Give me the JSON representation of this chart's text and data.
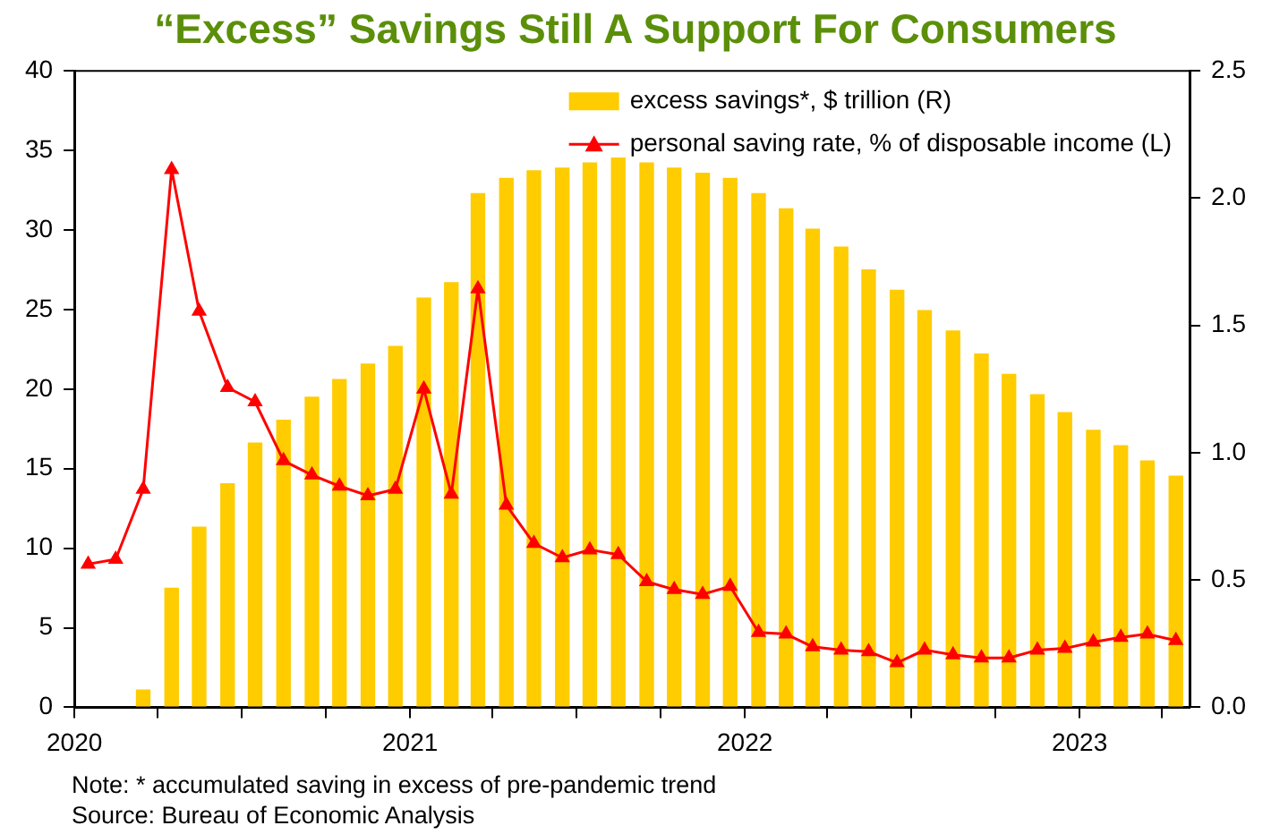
{
  "chart_data": {
    "type": "bar",
    "title": "“Excess” Savings Still A Support For Consumers",
    "x": [
      "2020-01-16",
      "2020-02-15",
      "2020-03-16",
      "2020-04-16",
      "2020-05-16",
      "2020-06-16",
      "2020-07-16",
      "2020-08-16",
      "2020-09-16",
      "2020-10-16",
      "2020-11-16",
      "2020-12-16",
      "2021-01-16",
      "2021-02-15",
      "2021-03-16",
      "2021-04-16",
      "2021-05-16",
      "2021-06-16",
      "2021-07-16",
      "2021-08-16",
      "2021-09-16",
      "2021-10-16",
      "2021-11-16",
      "2021-12-16",
      "2022-01-16",
      "2022-02-15",
      "2022-03-16",
      "2022-04-16",
      "2022-05-16",
      "2022-06-16",
      "2022-07-16",
      "2022-08-16",
      "2022-09-16",
      "2022-10-16",
      "2022-11-16",
      "2022-12-16",
      "2023-01-16",
      "2023-02-15",
      "2023-03-16",
      "2023-04-16"
    ],
    "series": [
      {
        "name": "excess savings*, $ trillion (R)",
        "axis": "y2",
        "color": "#ffcc00",
        "values": [
          null,
          null,
          0.07,
          0.47,
          0.71,
          0.88,
          1.04,
          1.13,
          1.22,
          1.29,
          1.35,
          1.42,
          1.61,
          1.67,
          2.02,
          2.08,
          2.11,
          2.12,
          2.14,
          2.16,
          2.14,
          2.12,
          2.1,
          2.08,
          2.02,
          1.96,
          1.88,
          1.81,
          1.72,
          1.64,
          1.56,
          1.48,
          1.39,
          1.31,
          1.23,
          1.16,
          1.09,
          1.03,
          0.97,
          0.91
        ]
      },
      {
        "name": "personal saving rate, % of disposable income (L)",
        "type": "line",
        "color": "#ff0000",
        "values": [
          9.0,
          9.3,
          13.7,
          33.8,
          24.9,
          20.1,
          19.2,
          15.5,
          14.6,
          13.9,
          13.3,
          13.7,
          20.0,
          13.4,
          26.3,
          12.7,
          10.3,
          9.4,
          9.9,
          9.6,
          7.9,
          7.4,
          7.1,
          7.6,
          4.7,
          4.6,
          3.8,
          3.6,
          3.5,
          2.8,
          3.6,
          3.3,
          3.1,
          3.1,
          3.6,
          3.7,
          4.1,
          4.4,
          4.6,
          4.2
        ]
      }
    ],
    "xlim": [
      "2020-01-01",
      "2023-05-01"
    ],
    "xticks": [
      {
        "value": "2020-01-01",
        "label": "2020"
      },
      {
        "value": "2020-04-01",
        "label": null
      },
      {
        "value": "2020-07-01",
        "label": null
      },
      {
        "value": "2020-10-01",
        "label": null
      },
      {
        "value": "2021-01-01",
        "label": "2021"
      },
      {
        "value": "2021-04-01",
        "label": null
      },
      {
        "value": "2021-07-01",
        "label": null
      },
      {
        "value": "2021-10-01",
        "label": null
      },
      {
        "value": "2022-01-01",
        "label": "2022"
      },
      {
        "value": "2022-04-01",
        "label": null
      },
      {
        "value": "2022-07-01",
        "label": null
      },
      {
        "value": "2022-10-01",
        "label": null
      },
      {
        "value": "2023-01-01",
        "label": "2023"
      },
      {
        "value": "2023-04-01",
        "label": null
      }
    ],
    "ylim": [
      0,
      40
    ],
    "yticks": [
      0,
      5,
      10,
      15,
      20,
      25,
      30,
      35,
      40
    ],
    "y2lim": [
      0,
      2.5
    ],
    "y2ticks": [
      {
        "value": 0,
        "label": "0.0"
      },
      0.5,
      {
        "value": 1,
        "label": "1.0"
      },
      1.5,
      {
        "value": 2,
        "label": "2.0"
      },
      2.5
    ],
    "marker": "triangle",
    "legend": "top right",
    "annotations": [
      "Note: * accumulated saving in excess of pre-pandemic trend",
      "Source: Bureau of Economic Analysis"
    ]
  }
}
